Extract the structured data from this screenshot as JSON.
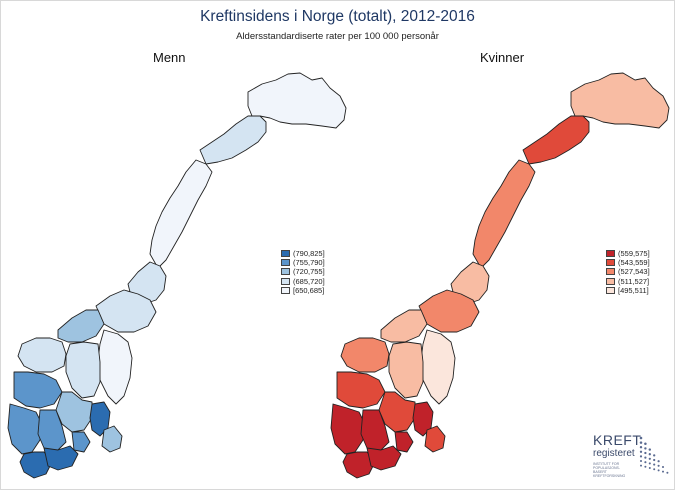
{
  "title": "Kreftinsidens i Norge (totalt), 2012-2016",
  "subtitle": "Aldersstandardiserte rater per 100 000 personår",
  "panels": {
    "men": {
      "label": "Menn",
      "legend": [
        "(790,825]",
        "(755,790]",
        "(720,755]",
        "(685,720]",
        "[650,685]"
      ],
      "colors": [
        "#2b6cb0",
        "#5c95cb",
        "#9ec3e0",
        "#d4e4f2",
        "#f1f5fb"
      ]
    },
    "women": {
      "label": "Kvinner",
      "legend": [
        "(559,575]",
        "(543,559]",
        "(527,543]",
        "(511,527]",
        "[495,511]"
      ],
      "colors": [
        "#c0222a",
        "#e04a3a",
        "#f2876a",
        "#f8bca3",
        "#fbe6dc"
      ]
    }
  },
  "logo": {
    "kreft": "KREFT",
    "registeret": "registeret",
    "small_1": "INSTITUTT FOR POPULASJONS-",
    "small_2": "BASERT KREFTFORSKNING"
  }
}
